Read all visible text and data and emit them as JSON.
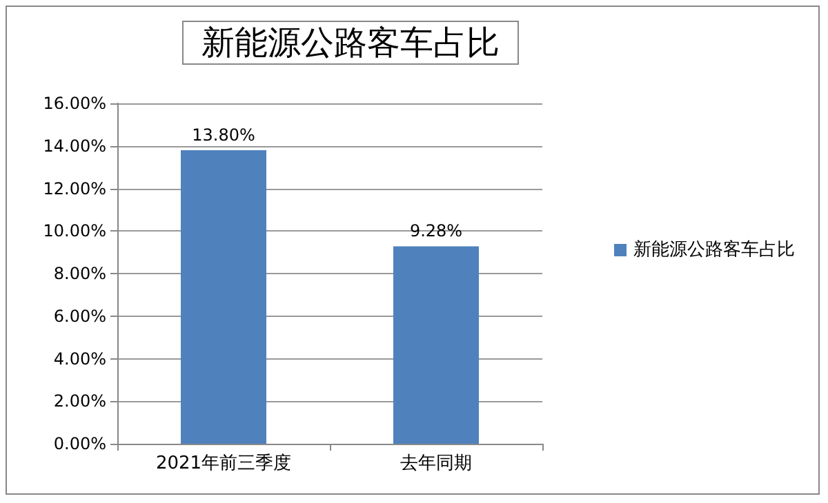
{
  "chart_data": {
    "type": "bar",
    "title": "新能源公路客车占比",
    "categories": [
      "2021年前三季度",
      "去年同期"
    ],
    "series": [
      {
        "name": "新能源公路客车占比",
        "color": "#4f81bd",
        "values": [
          13.8,
          9.28
        ],
        "value_labels": [
          "13.80%",
          "9.28%"
        ]
      }
    ],
    "ylim": [
      0,
      16
    ],
    "yticks": [
      {
        "value": 0,
        "label": "0.00%"
      },
      {
        "value": 2,
        "label": "2.00%"
      },
      {
        "value": 4,
        "label": "4.00%"
      },
      {
        "value": 6,
        "label": "6.00%"
      },
      {
        "value": 8,
        "label": "8.00%"
      },
      {
        "value": 10,
        "label": "10.00%"
      },
      {
        "value": 12,
        "label": "12.00%"
      },
      {
        "value": 14,
        "label": "14.00%"
      },
      {
        "value": 16,
        "label": "16.00%"
      }
    ],
    "grid": "y",
    "legend": "right"
  }
}
